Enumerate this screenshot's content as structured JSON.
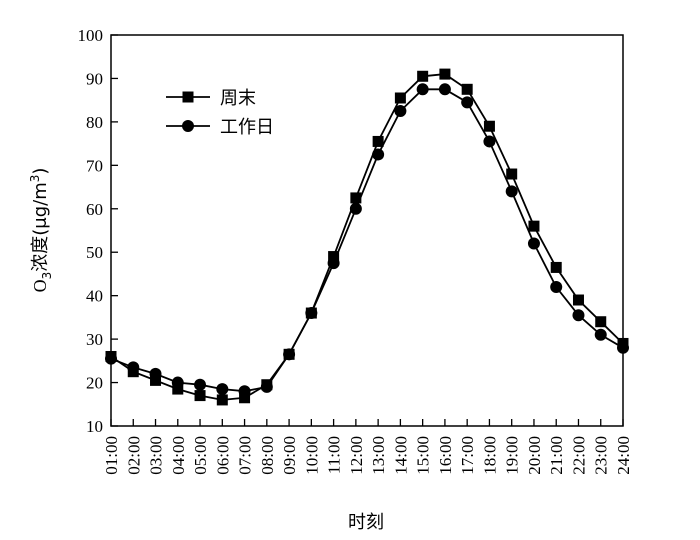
{
  "chart_data": {
    "type": "line",
    "xlabel": "时刻",
    "ylabel": {
      "prefix": "O",
      "subscript": "3",
      "main": "浓度(μg/m",
      "superscript": "3",
      "suffix": ")"
    },
    "categories": [
      "01:00",
      "02:00",
      "03:00",
      "04:00",
      "05:00",
      "06:00",
      "07:00",
      "08:00",
      "09:00",
      "10:00",
      "11:00",
      "12:00",
      "13:00",
      "14:00",
      "15:00",
      "16:00",
      "17:00",
      "18:00",
      "19:00",
      "20:00",
      "21:00",
      "22:00",
      "23:00",
      "24:00"
    ],
    "ylim": [
      10,
      100
    ],
    "yticks": [
      10,
      20,
      30,
      40,
      50,
      60,
      70,
      80,
      90,
      100
    ],
    "grid": false,
    "legend_position": "top-left",
    "series": [
      {
        "name": "周末",
        "marker": "square",
        "color": "#000000",
        "values": [
          26,
          22.5,
          20.5,
          18.5,
          17,
          16,
          16.5,
          19.5,
          26.5,
          36,
          49,
          62.5,
          75.5,
          85.5,
          90.5,
          91,
          87.5,
          79,
          68,
          56,
          46.5,
          39,
          34,
          29
        ]
      },
      {
        "name": "工作日",
        "marker": "circle",
        "color": "#000000",
        "values": [
          25.5,
          23.5,
          22,
          20,
          19.5,
          18.5,
          18,
          19,
          26.5,
          36,
          47.5,
          60,
          72.5,
          82.5,
          87.5,
          87.5,
          84.5,
          75.5,
          64,
          52,
          42,
          35.5,
          31,
          28
        ]
      }
    ]
  }
}
